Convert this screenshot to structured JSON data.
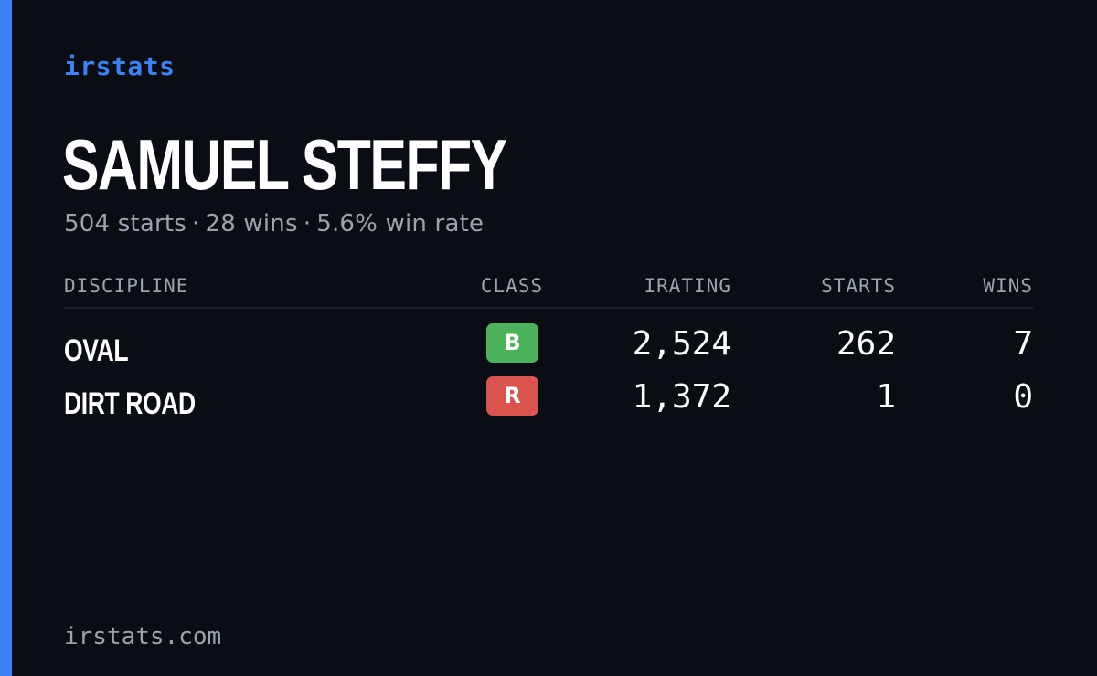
{
  "brand": "irstats",
  "driver": {
    "name": "SAMUEL STEFFY",
    "starts_text": "504 starts",
    "wins_text": "28 wins",
    "win_rate_text": "5.6% win rate",
    "separator": "·"
  },
  "table": {
    "headers": {
      "discipline": "DISCIPLINE",
      "class": "CLASS",
      "irating": "IRATING",
      "starts": "STARTS",
      "wins": "WINS"
    },
    "rows": [
      {
        "discipline": "OVAL",
        "class": "B",
        "class_color": "#4cb35a",
        "irating": "2,524",
        "starts": "262",
        "wins": "7"
      },
      {
        "discipline": "DIRT ROAD",
        "class": "R",
        "class_color": "#d9534f",
        "irating": "1,372",
        "starts": "1",
        "wins": "0"
      }
    ]
  },
  "footer": "irstats.com",
  "colors": {
    "background": "#0a0d14",
    "accent": "#3b82f6",
    "muted_text": "#9aa3b2"
  }
}
